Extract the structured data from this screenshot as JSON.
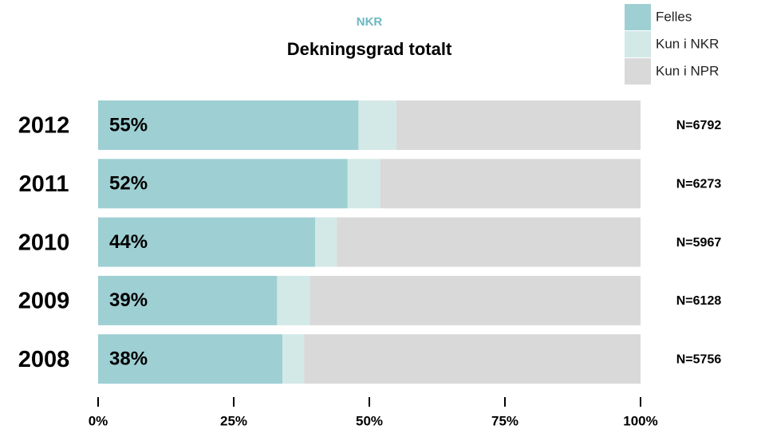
{
  "chart_data": {
    "type": "stacked_bar_horizontal",
    "title": "NKR",
    "subtitle": "Dekningsgrad totalt",
    "categories": [
      "2012",
      "2011",
      "2010",
      "2009",
      "2008"
    ],
    "series": [
      {
        "name": "Felles",
        "color": "#9ecfd3",
        "values": [
          48,
          46,
          40,
          33,
          34
        ]
      },
      {
        "name": "Kun i NKR",
        "color": "#d3e9e7",
        "values": [
          7,
          6,
          4,
          6,
          4
        ]
      },
      {
        "name": "Kun i NPR",
        "color": "#d9d9d9",
        "values": [
          45,
          48,
          56,
          61,
          62
        ]
      }
    ],
    "coverage_labels": [
      "55%",
      "52%",
      "44%",
      "39%",
      "38%"
    ],
    "n_labels": [
      "N=6792",
      "N=6273",
      "N=5967",
      "N=6128",
      "N=5756"
    ],
    "xlim": [
      0,
      100
    ],
    "xticks": [
      {
        "value": 0,
        "label": "0%"
      },
      {
        "value": 25,
        "label": "25%"
      },
      {
        "value": 50,
        "label": "50%"
      },
      {
        "value": 75,
        "label": "75%"
      },
      {
        "value": 100,
        "label": "100%"
      }
    ],
    "title_color": "#6bb8bf",
    "legend_position": "top-right"
  }
}
